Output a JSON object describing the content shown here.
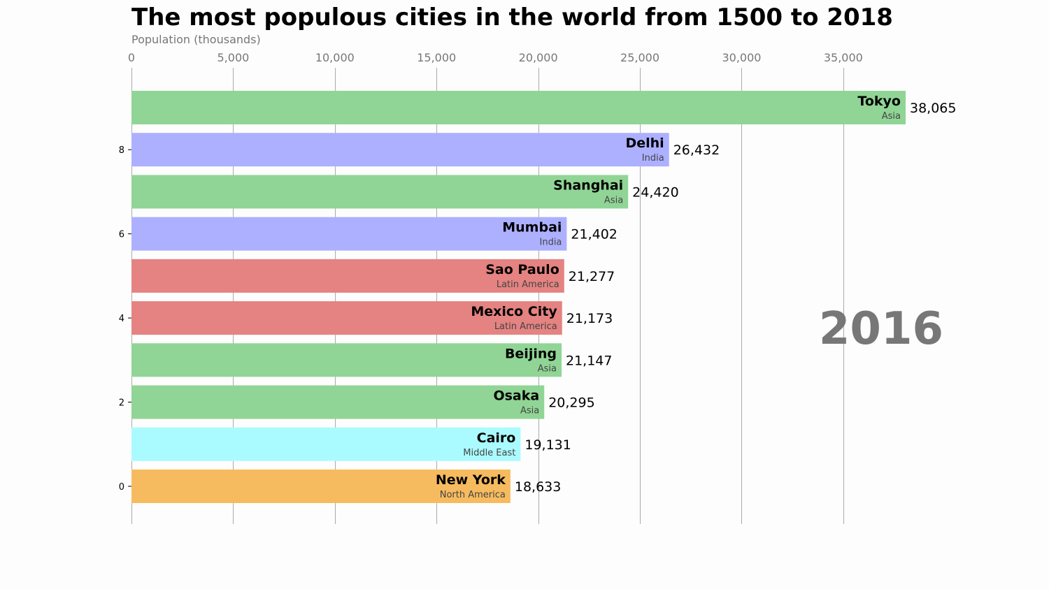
{
  "chart_data": {
    "type": "bar",
    "orientation": "horizontal",
    "title": "The most populous cities in the world from 1500 to 2018",
    "xlabel": "Population (thousands)",
    "year": "2016",
    "xlim": [
      0,
      38065
    ],
    "xticks": [
      0,
      5000,
      10000,
      15000,
      20000,
      25000,
      30000,
      35000
    ],
    "xtick_labels": [
      "0",
      "5,000",
      "10,000",
      "15,000",
      "20,000",
      "25,000",
      "30,000",
      "35,000"
    ],
    "yticks": [
      0,
      2,
      4,
      6,
      8
    ],
    "grid": true,
    "bars": [
      {
        "rank": 9,
        "name": "Tokyo",
        "group": "Asia",
        "value": 38065,
        "label": "38,065"
      },
      {
        "rank": 8,
        "name": "Delhi",
        "group": "India",
        "value": 26432,
        "label": "26,432"
      },
      {
        "rank": 7,
        "name": "Shanghai",
        "group": "Asia",
        "value": 24420,
        "label": "24,420"
      },
      {
        "rank": 6,
        "name": "Mumbai",
        "group": "India",
        "value": 21402,
        "label": "21,402"
      },
      {
        "rank": 5,
        "name": "Sao Paulo",
        "group": "Latin America",
        "value": 21277,
        "label": "21,277"
      },
      {
        "rank": 4,
        "name": "Mexico City",
        "group": "Latin America",
        "value": 21173,
        "label": "21,173"
      },
      {
        "rank": 3,
        "name": "Beijing",
        "group": "Asia",
        "value": 21147,
        "label": "21,147"
      },
      {
        "rank": 2,
        "name": "Osaka",
        "group": "Asia",
        "value": 20295,
        "label": "20,295"
      },
      {
        "rank": 1,
        "name": "Cairo",
        "group": "Middle East",
        "value": 19131,
        "label": "19,131"
      },
      {
        "rank": 0,
        "name": "New York",
        "group": "North America",
        "value": 18633,
        "label": "18,633"
      }
    ],
    "group_colors": {
      "Asia": "#90d595",
      "India": "#adb0ff",
      "Latin America": "#e48381",
      "Middle East": "#aafbff",
      "North America": "#f7bb5f"
    }
  }
}
